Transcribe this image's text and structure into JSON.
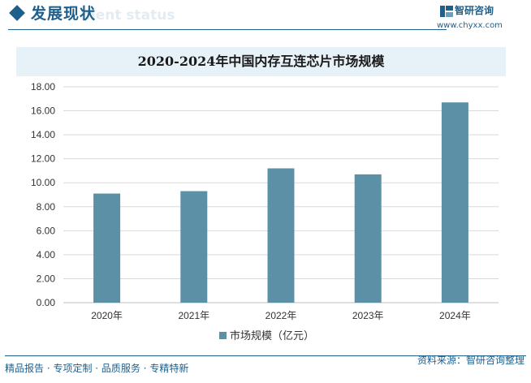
{
  "header": {
    "title": "发展现状",
    "watermark": "ment status"
  },
  "brand": {
    "name": "智研咨询",
    "url": "www.chyxx.com",
    "color": "#1f5f8b"
  },
  "footer": {
    "slogan": "精品报告 · 专项定制 · 品质服务 · 专精特新",
    "source": "资料来源：智研咨询整理"
  },
  "chart_data": {
    "type": "bar",
    "title": "2020-2024年中国内存互连芯片市场规模",
    "categories": [
      "2020年",
      "2021年",
      "2022年",
      "2023年",
      "2024年"
    ],
    "series": [
      {
        "name": "市场规模（亿元）",
        "values": [
          9.1,
          9.3,
          11.2,
          10.7,
          16.7
        ],
        "color": "#5b90a7"
      }
    ],
    "ylim": [
      0,
      18
    ],
    "yticks": [
      "0.00",
      "2.00",
      "4.00",
      "6.00",
      "8.00",
      "10.00",
      "12.00",
      "14.00",
      "16.00",
      "18.00"
    ],
    "xlabel": "",
    "ylabel": "",
    "grid": true,
    "legend": "bottom-center"
  }
}
